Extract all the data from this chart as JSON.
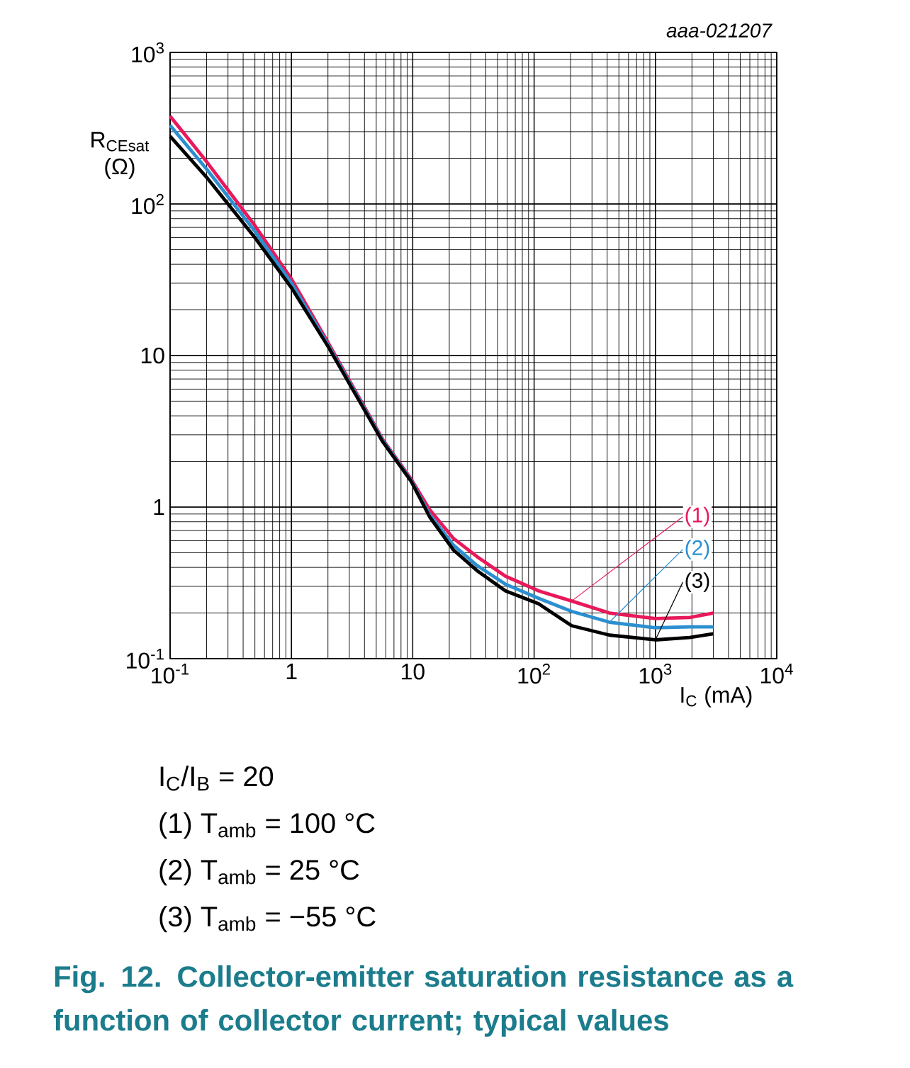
{
  "chart_data": {
    "type": "line",
    "title": "Fig. 12.  Collector-emitter saturation resistance as a function of collector current; typical values",
    "xlabel": "I$_{C}$ (mA)",
    "ylabel": "R$_{CEsat}$ (Ω)",
    "log": "xy",
    "grid": true,
    "line_style": "solid",
    "marker": "none",
    "xlim": [
      0.1,
      10000
    ],
    "ylim": [
      0.1,
      1000
    ],
    "xticks": [
      {
        "value": 0.1,
        "label": "10$^{-1}$"
      },
      1,
      10,
      {
        "value": 100,
        "label": "10$^{2}$"
      },
      {
        "value": 1000,
        "label": "10$^{3}$"
      },
      {
        "value": 10000,
        "label": "10$^{4}$"
      }
    ],
    "yticks": [
      {
        "value": 0.1,
        "label": "10$^{-1}$"
      },
      1,
      10,
      {
        "value": 100,
        "label": "10$^{2}$"
      },
      {
        "value": 1000,
        "label": "10$^{3}$"
      }
    ],
    "x": [
      0.1,
      0.2,
      0.5,
      1,
      2,
      5.65,
      9.7,
      13.8,
      21.7,
      34,
      58,
      109,
      204,
      418,
      1000,
      1920,
      3000
    ],
    "series": [
      {
        "name": "(1)",
        "color": "#e8195a",
        "values": [
          380,
          190,
          72,
          32,
          12.2,
          2.8,
          1.53,
          0.96,
          0.62,
          0.47,
          0.35,
          0.28,
          0.24,
          0.2,
          0.184,
          0.187,
          0.2
        ]
      },
      {
        "name": "(2)",
        "color": "#2b8fd0",
        "values": [
          330,
          170,
          66,
          30,
          11.8,
          2.75,
          1.5,
          0.89,
          0.56,
          0.41,
          0.31,
          0.25,
          0.205,
          0.174,
          0.16,
          0.162,
          0.162
        ]
      },
      {
        "name": "(3)",
        "color": "#000000",
        "values": [
          280,
          150,
          60,
          28,
          11.5,
          2.7,
          1.48,
          0.86,
          0.52,
          0.38,
          0.28,
          0.23,
          0.165,
          0.143,
          0.133,
          0.138,
          0.146
        ]
      }
    ],
    "annotations": [
      "aaa-021207",
      "I$_{C}$/I$_{B}$ = 20",
      "(1) T$_{amb}$ = 100 °C",
      "(2) T$_{amb}$ = 25 °C",
      "(3) T$_{amb}$ = −55 °C"
    ]
  }
}
